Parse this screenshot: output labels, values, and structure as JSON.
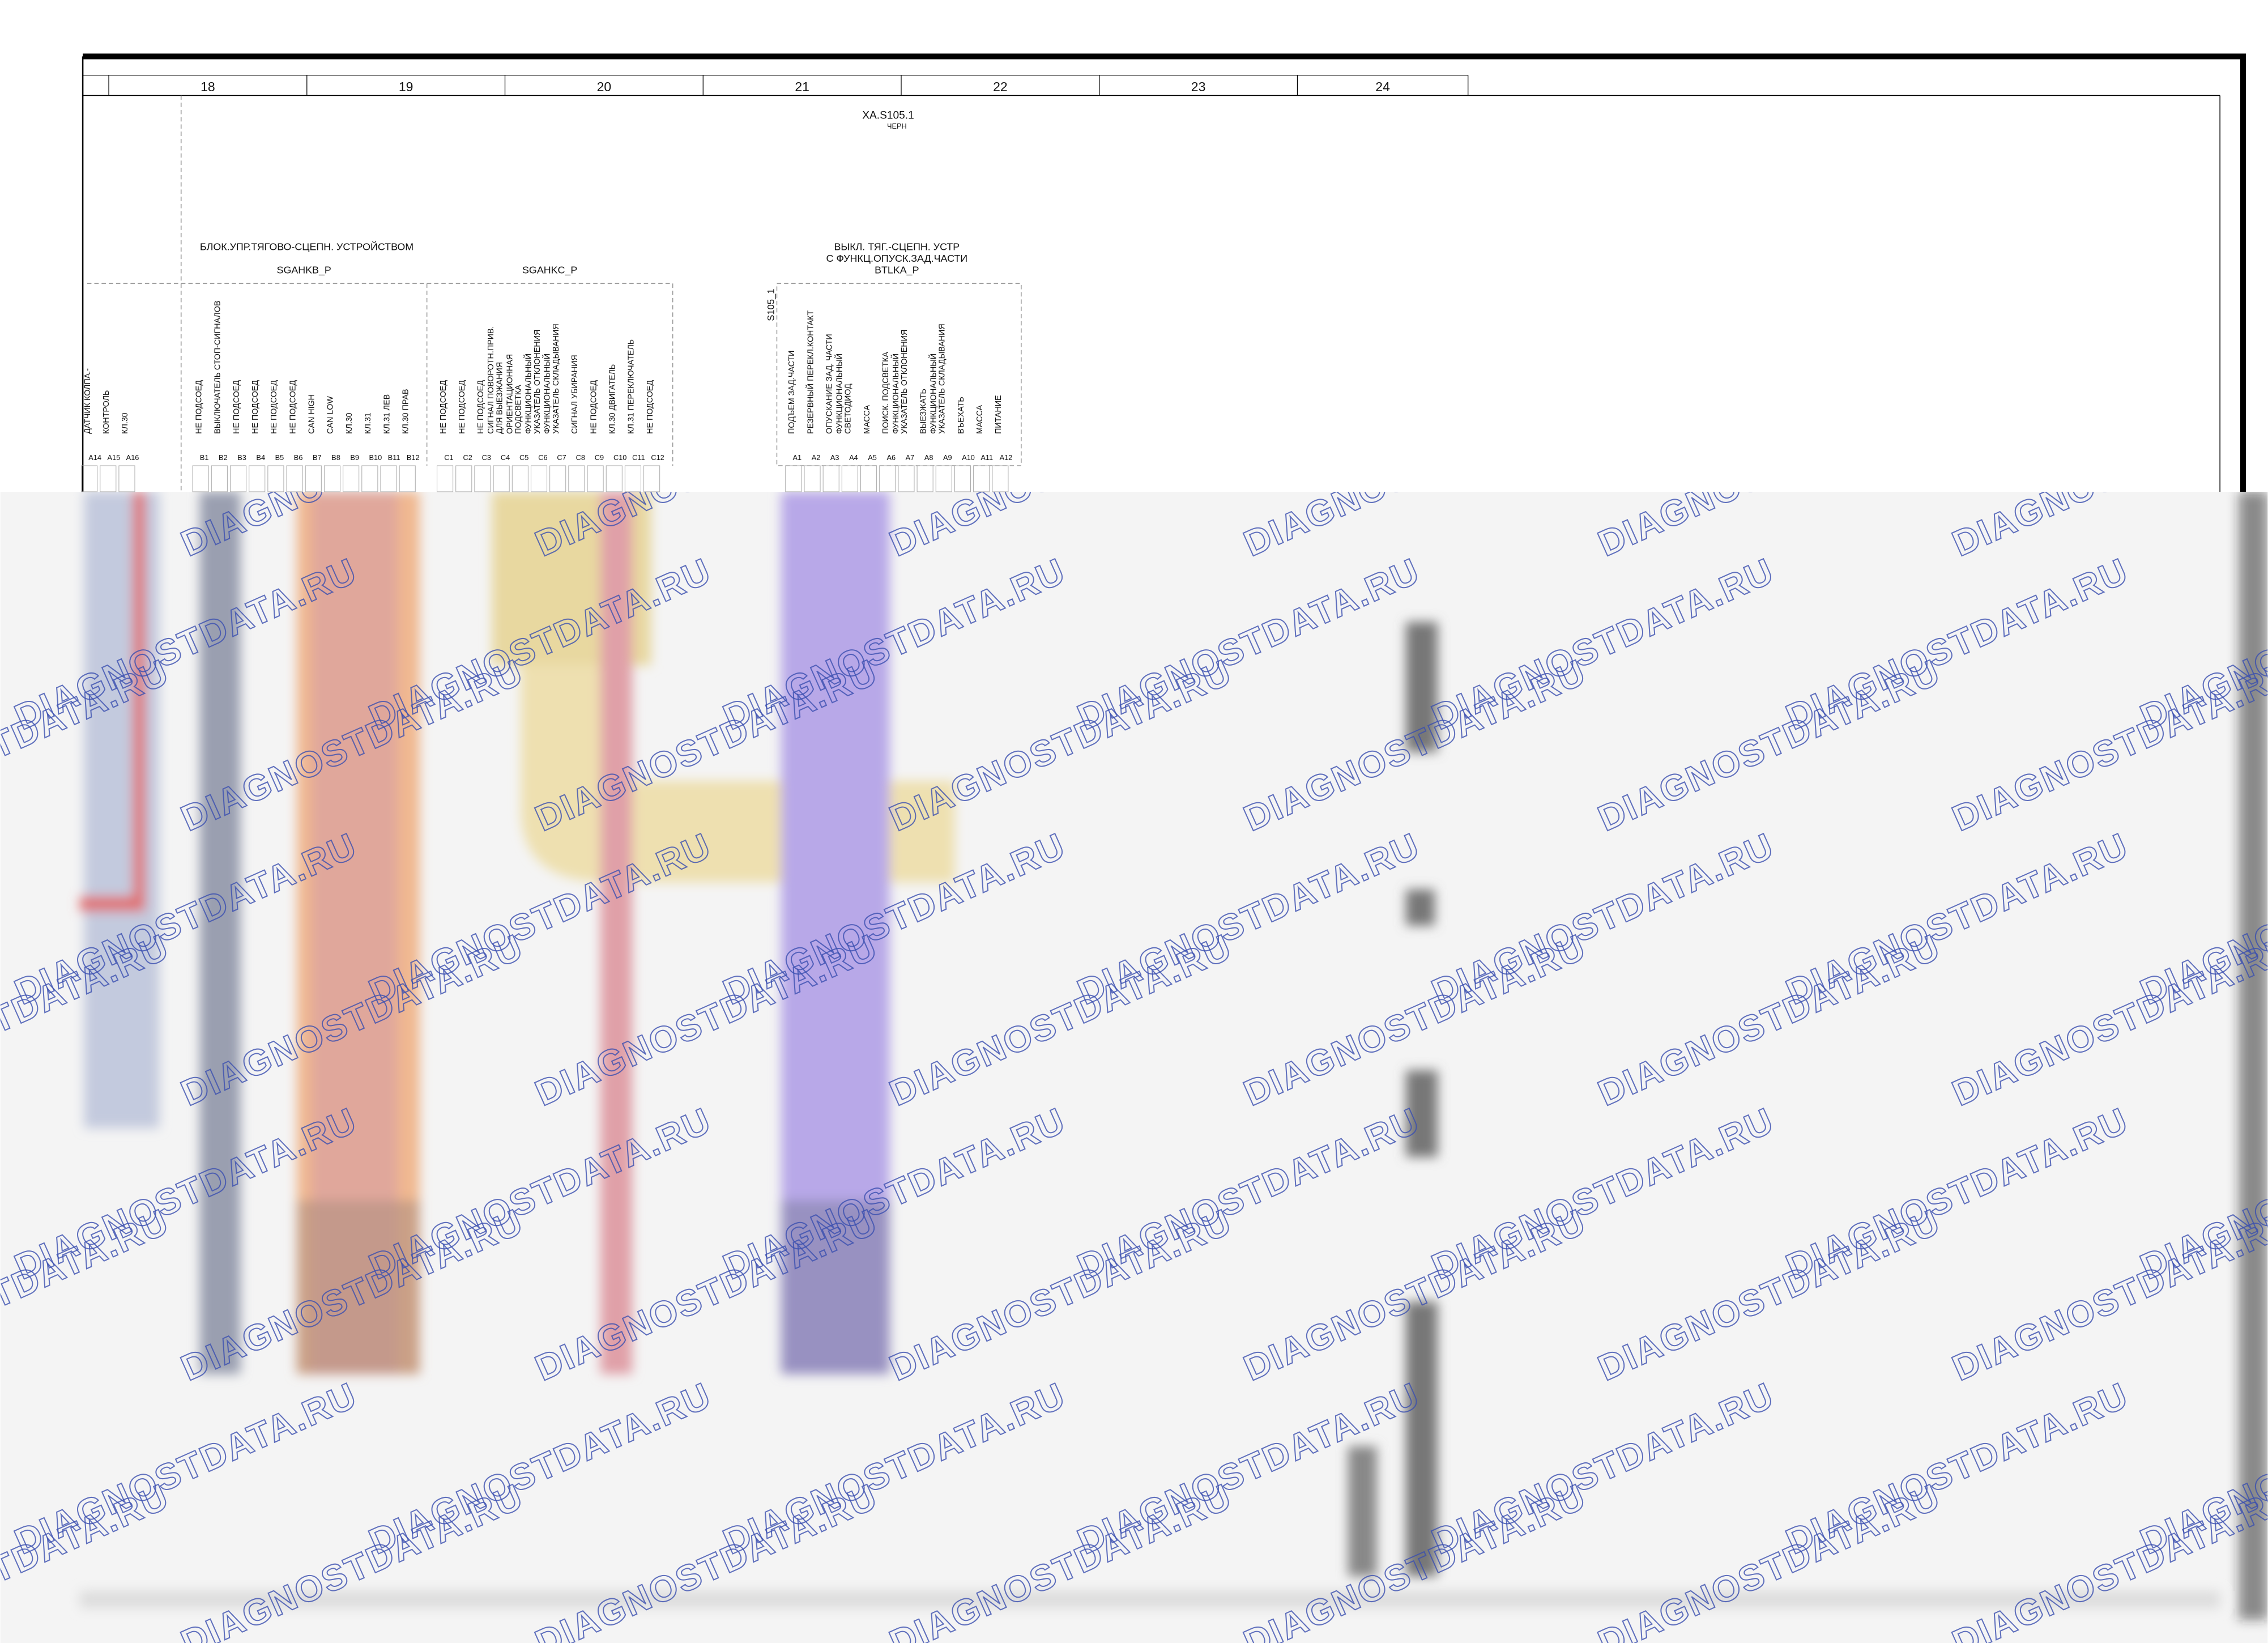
{
  "columns": [
    "18",
    "19",
    "20",
    "21",
    "22",
    "23",
    "24"
  ],
  "connector": {
    "id": "XA.S105.1",
    "color": "ЧЕРН"
  },
  "left_unit": {
    "pins": [
      {
        "id": "A14",
        "label": [
          "ДАТЧИК КОЛПА.-"
        ]
      },
      {
        "id": "A15",
        "label": [
          "КОНТРОЛЬ"
        ]
      },
      {
        "id": "A16",
        "label": [
          "КЛ.30"
        ]
      }
    ]
  },
  "unit1": {
    "title": "БЛОК.УПР.ТЯГОВО-СЦЕПН. УСТРОЙСТВОМ",
    "blocks": [
      {
        "name": "SGAHKB_P",
        "pins": [
          {
            "id": "B1",
            "label": [
              "НЕ ПОДСОЕД"
            ]
          },
          {
            "id": "B2",
            "label": [
              "ВЫКЛЮЧАТЕЛЬ СТОП-СИГНАЛОВ"
            ]
          },
          {
            "id": "B3",
            "label": [
              "НЕ ПОДСОЕД"
            ]
          },
          {
            "id": "B4",
            "label": [
              "НЕ ПОДСОЕД"
            ]
          },
          {
            "id": "B5",
            "label": [
              "НЕ ПОДСОЕД"
            ]
          },
          {
            "id": "B6",
            "label": [
              "НЕ ПОДСОЕД"
            ]
          },
          {
            "id": "B7",
            "label": [
              "CAN HIGH"
            ]
          },
          {
            "id": "B8",
            "label": [
              "CAN LOW"
            ]
          },
          {
            "id": "B9",
            "label": [
              "КЛ.30"
            ]
          },
          {
            "id": "B10",
            "label": [
              "КЛ.31"
            ]
          },
          {
            "id": "B11",
            "label": [
              "КЛ.31 ЛЕВ"
            ]
          },
          {
            "id": "B12",
            "label": [
              "КЛ.30 ПРАВ"
            ]
          }
        ]
      },
      {
        "name": "SGAHKC_P",
        "pins": [
          {
            "id": "C1",
            "label": [
              "НЕ ПОДСОЕД"
            ]
          },
          {
            "id": "C2",
            "label": [
              "НЕ ПОДСОЕД"
            ]
          },
          {
            "id": "C3",
            "label": [
              "НЕ ПОДСОЕД"
            ]
          },
          {
            "id": "C4",
            "label": [
              "СИГНАЛ ПОВОРОТН.ПРИВ.",
              "ДЛЯ ВЫЕЗЖАНИЯ"
            ]
          },
          {
            "id": "C5",
            "label": [
              "ОРИЕНТАЦИОННАЯ",
              "ПОДСВЕТКА"
            ]
          },
          {
            "id": "C6",
            "label": [
              "ФУНКЦИОНАЛЬНЫЙ",
              "УКАЗАТЕЛЬ ОТКЛОНЕНИЯ"
            ]
          },
          {
            "id": "C7",
            "label": [
              "ФУНКЦИОНАЛЬНЫЙ",
              "УКАЗАТЕЛЬ СКЛАДЫВАНИЯ"
            ]
          },
          {
            "id": "C8",
            "label": [
              "СИГНАЛ УБИРАНИЯ"
            ]
          },
          {
            "id": "C9",
            "label": [
              "НЕ ПОДСОЕД"
            ]
          },
          {
            "id": "C10",
            "label": [
              "КЛ.30 ДВИГАТЕЛЬ"
            ]
          },
          {
            "id": "C11",
            "label": [
              "КЛ.31 ПЕРЕКЛЮЧАТЕЛЬ"
            ]
          },
          {
            "id": "C12",
            "label": [
              "НЕ ПОДСОЕД"
            ]
          }
        ]
      }
    ]
  },
  "unit2": {
    "title_lines": [
      "ВЫКЛ. ТЯГ.-СЦЕПН. УСТР",
      "С ФУНКЦ.ОПУСК.ЗАД.ЧАСТИ",
      "BTLKA_P"
    ],
    "ref": "S105_1",
    "pins": [
      {
        "id": "A1",
        "label": [
          "ПОДЪЕМ ЗАД.ЧАСТИ"
        ]
      },
      {
        "id": "A2",
        "label": [
          "РЕЗЕРВНЫЙ ПЕРЕКЛ.КОНТАКТ"
        ]
      },
      {
        "id": "A3",
        "label": [
          "ОПУСКАНИЕ ЗАД. ЧАСТИ"
        ]
      },
      {
        "id": "A4",
        "label": [
          "ФУНКЦИОНАЛЬНЫЙ",
          "СВЕТОДИОД"
        ]
      },
      {
        "id": "A5",
        "label": [
          "МАССА"
        ]
      },
      {
        "id": "A6",
        "label": [
          "ПОИСК. ПОДСВЕТКА"
        ]
      },
      {
        "id": "A7",
        "label": [
          "ФУНКЦИОНАЛЬНЫЙ",
          "УКАЗАТЕЛЬ ОТКЛОНЕНИЯ"
        ]
      },
      {
        "id": "A8",
        "label": [
          "ВЫЕЗЖАТЬ"
        ]
      },
      {
        "id": "A9",
        "label": [
          "ФУНКЦИОНАЛЬНЫЙ",
          "УКАЗАТЕЛЬ СКЛАДЫВАНИЯ"
        ]
      },
      {
        "id": "A10",
        "label": [
          "ВЪЕХАТЬ"
        ]
      },
      {
        "id": "A11",
        "label": [
          "МАССА"
        ]
      },
      {
        "id": "A12",
        "label": [
          "ПИТАНИЕ"
        ]
      }
    ]
  },
  "watermark": "DIAGNOSTDATA.RU"
}
